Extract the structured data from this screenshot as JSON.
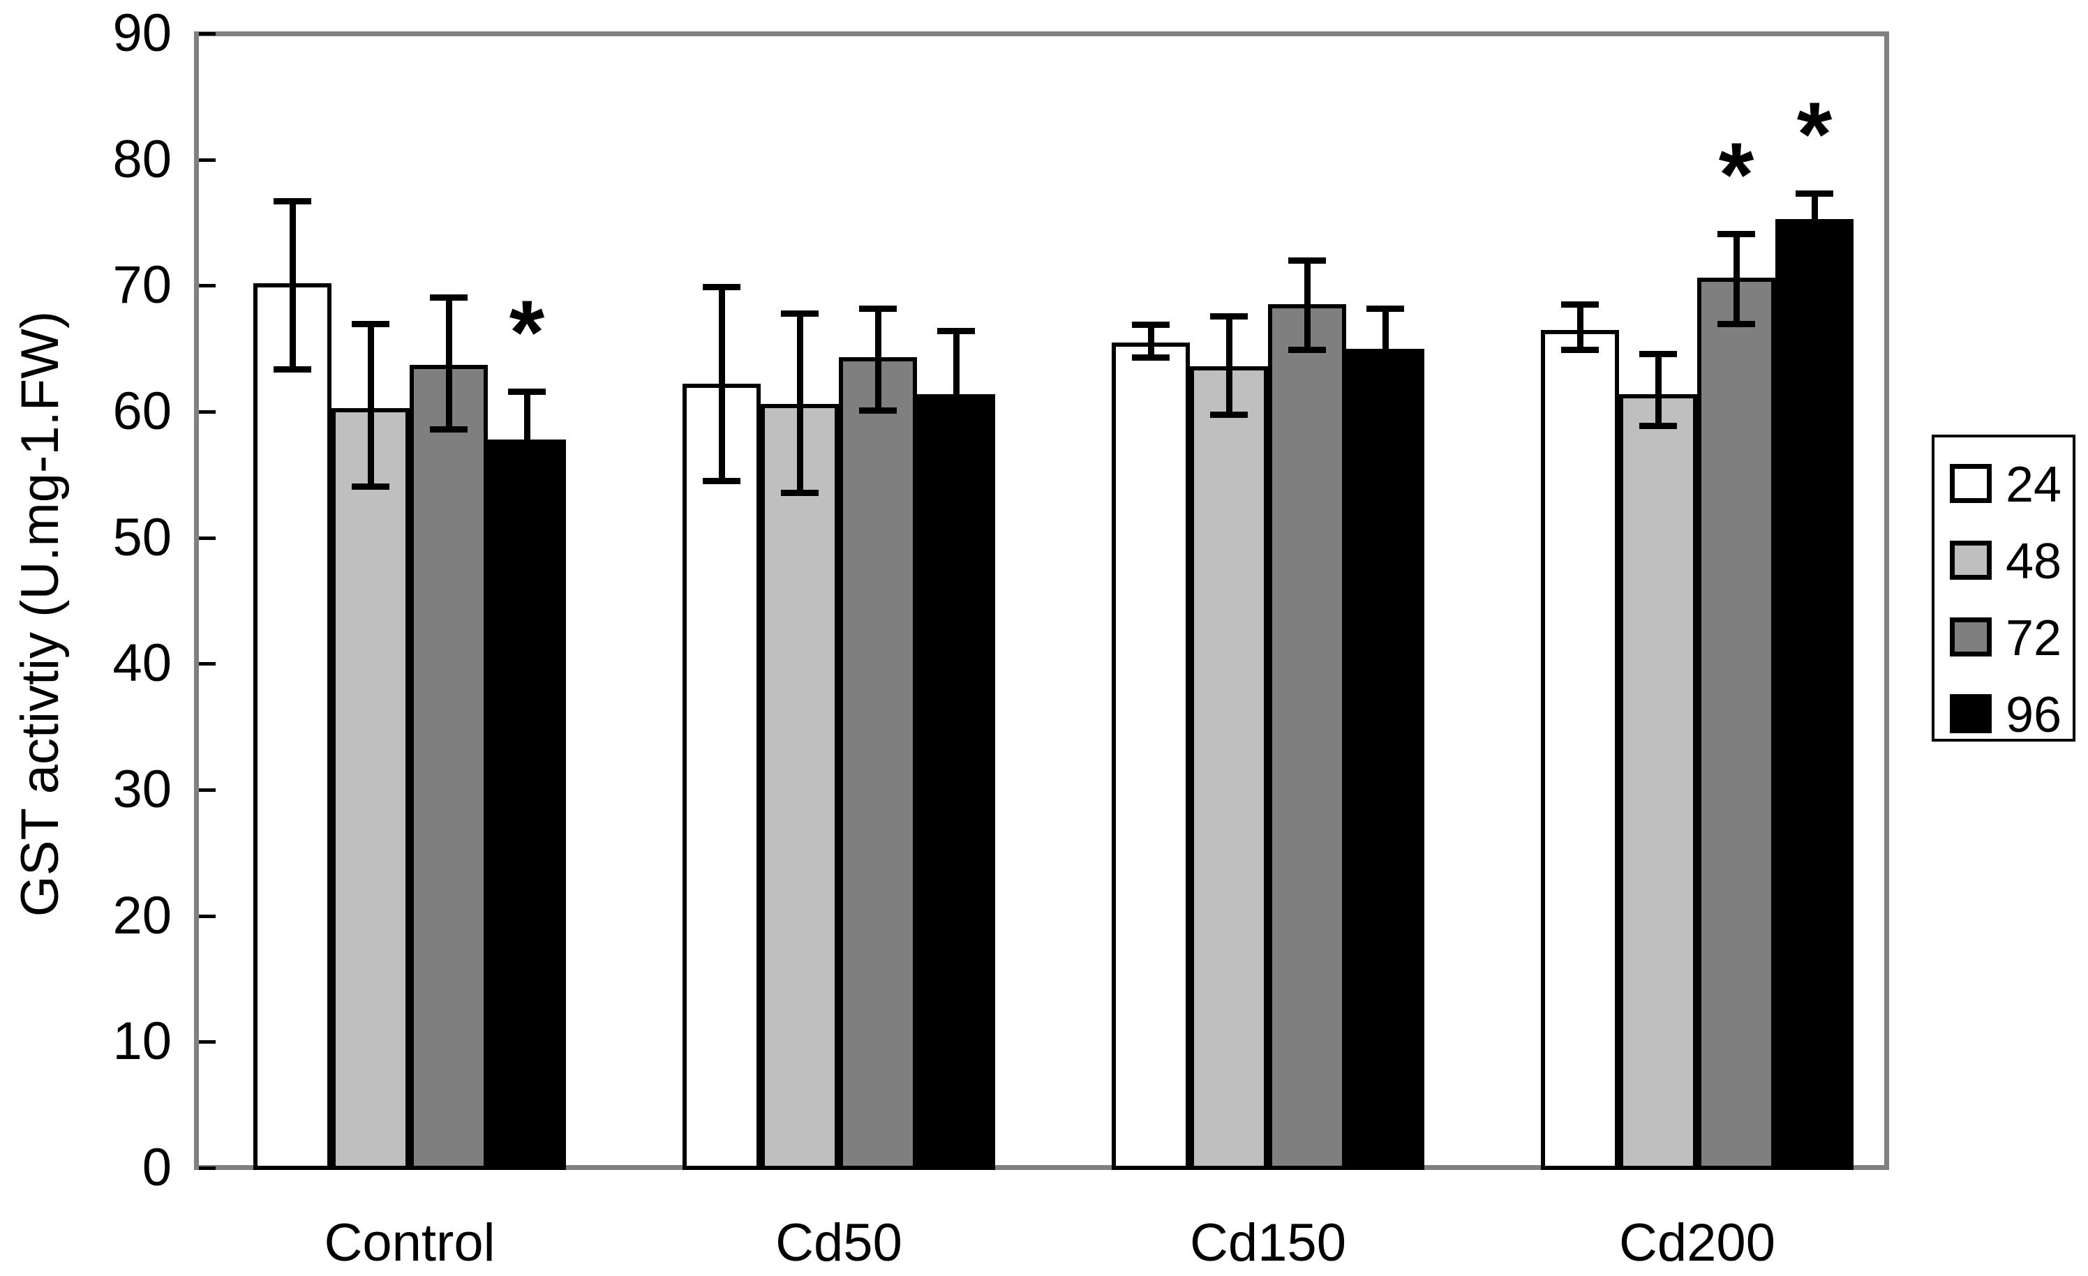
{
  "chart_data": {
    "type": "bar",
    "title": "",
    "xlabel": "",
    "ylabel": "GST activtiy (U.mg-1.FW)",
    "ylim": [
      0,
      90
    ],
    "yticks": [
      0,
      10,
      20,
      30,
      40,
      50,
      60,
      70,
      80,
      90
    ],
    "grid": false,
    "legend_position": "right",
    "significance_marker": "*",
    "categories": [
      "Control",
      "Cd50",
      "Cd150",
      "Cd200"
    ],
    "series": [
      {
        "name": "24",
        "color": "#ffffff",
        "values": [
          70.2,
          62.2,
          65.5,
          66.5
        ],
        "err_low": [
          63.4,
          54.5,
          64.3,
          64.9
        ],
        "err_high": [
          76.7,
          69.9,
          66.9,
          68.5
        ],
        "significant": [
          false,
          false,
          false,
          false
        ]
      },
      {
        "name": "48",
        "color": "#bfbfbf",
        "values": [
          60.3,
          60.6,
          63.6,
          61.4
        ],
        "err_low": [
          54.1,
          53.6,
          59.8,
          58.9
        ],
        "err_high": [
          67.0,
          67.8,
          67.6,
          64.6
        ],
        "significant": [
          false,
          false,
          false,
          false
        ]
      },
      {
        "name": "72",
        "color": "#7f7f7f",
        "values": [
          63.7,
          64.3,
          68.5,
          70.6
        ],
        "err_low": [
          58.6,
          60.1,
          64.9,
          67.0
        ],
        "err_high": [
          69.1,
          68.2,
          72.0,
          74.1
        ],
        "significant": [
          false,
          false,
          false,
          true
        ]
      },
      {
        "name": "96",
        "color": "#000000",
        "values": [
          57.8,
          61.4,
          65.0,
          75.3
        ],
        "err_low": [
          null,
          null,
          null,
          null
        ],
        "err_high": [
          61.6,
          66.4,
          68.2,
          77.3
        ],
        "significant": [
          true,
          false,
          false,
          true
        ]
      }
    ],
    "colors": {
      "axis": "#808080",
      "error_bar": "#000000",
      "text": "#000000",
      "background": "#ffffff"
    }
  }
}
